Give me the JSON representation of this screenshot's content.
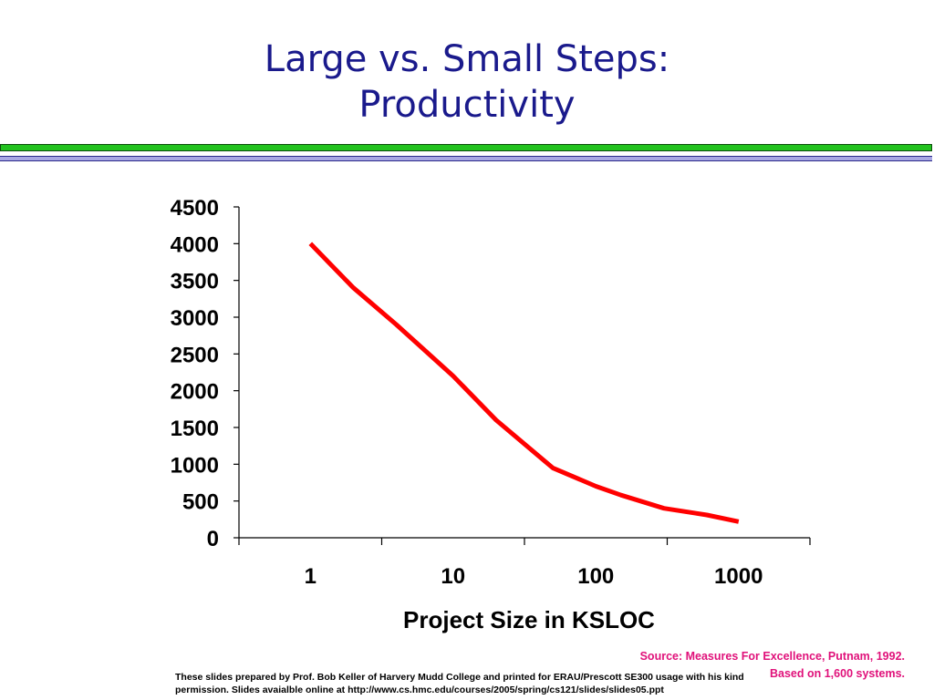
{
  "slide": {
    "title_line1": "Large vs. Small Steps:",
    "title_line2": "Productivity",
    "source": "Source: Measures For Excellence, Putnam, 1992. Based on 1,600 systems.",
    "footer": "These slides prepared by Prof. Bob Keller of Harvery Mudd College and printed  for ERAU/Prescott SE300 usage with his kind permission.  Slides avaialble online at http://www.cs.hmc.edu/courses/2005/spring/cs121/slides/slides05.ppt"
  },
  "colors": {
    "title": "#1a1a8c",
    "line": "#ff0000",
    "source": "#e0117a",
    "rule_green": "#22c21f",
    "rule_blue": "#a9a8e4"
  },
  "chart_data": {
    "type": "line",
    "xscale": "log",
    "xlabel": "Project Size in KSLOC",
    "ylabel": "",
    "xticks": [
      "1",
      "10",
      "100",
      "1000"
    ],
    "yticks": [
      "0",
      "500",
      "1000",
      "1500",
      "2000",
      "2500",
      "3000",
      "3500",
      "4000",
      "4500"
    ],
    "ylim": [
      0,
      4500
    ],
    "grid": false,
    "series": [
      {
        "x": [
          1,
          2,
          4,
          10,
          20,
          50,
          100,
          150,
          300,
          600,
          1000
        ],
        "values": [
          4000,
          3400,
          2900,
          2200,
          1600,
          950,
          700,
          580,
          400,
          310,
          220
        ]
      }
    ]
  }
}
